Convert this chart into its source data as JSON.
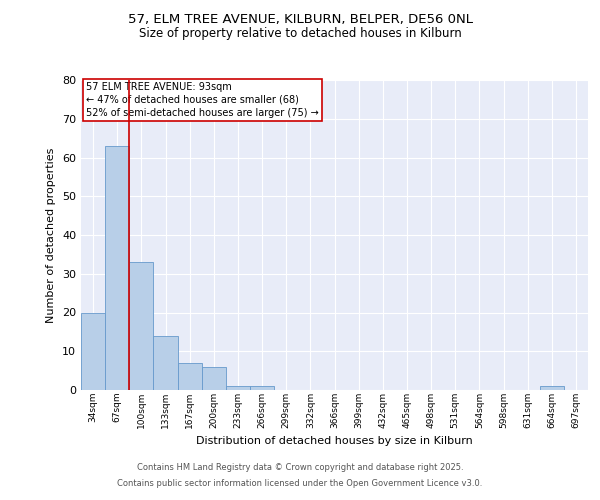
{
  "title1": "57, ELM TREE AVENUE, KILBURN, BELPER, DE56 0NL",
  "title2": "Size of property relative to detached houses in Kilburn",
  "xlabel": "Distribution of detached houses by size in Kilburn",
  "ylabel": "Number of detached properties",
  "bins": [
    "34sqm",
    "67sqm",
    "100sqm",
    "133sqm",
    "167sqm",
    "200sqm",
    "233sqm",
    "266sqm",
    "299sqm",
    "332sqm",
    "366sqm",
    "399sqm",
    "432sqm",
    "465sqm",
    "498sqm",
    "531sqm",
    "564sqm",
    "598sqm",
    "631sqm",
    "664sqm",
    "697sqm"
  ],
  "values": [
    20,
    63,
    33,
    14,
    7,
    6,
    1,
    1,
    0,
    0,
    0,
    0,
    0,
    0,
    0,
    0,
    0,
    0,
    0,
    1,
    0
  ],
  "bar_color": "#b8cfe8",
  "bar_edge_color": "#6699cc",
  "red_line_x": 1.5,
  "annotation_title": "57 ELM TREE AVENUE: 93sqm",
  "annotation_line1": "← 47% of detached houses are smaller (68)",
  "annotation_line2": "52% of semi-detached houses are larger (75) →",
  "ylim": [
    0,
    80
  ],
  "yticks": [
    0,
    10,
    20,
    30,
    40,
    50,
    60,
    70,
    80
  ],
  "bg_color": "#e8ecf8",
  "footer1": "Contains HM Land Registry data © Crown copyright and database right 2025.",
  "footer2": "Contains public sector information licensed under the Open Government Licence v3.0."
}
